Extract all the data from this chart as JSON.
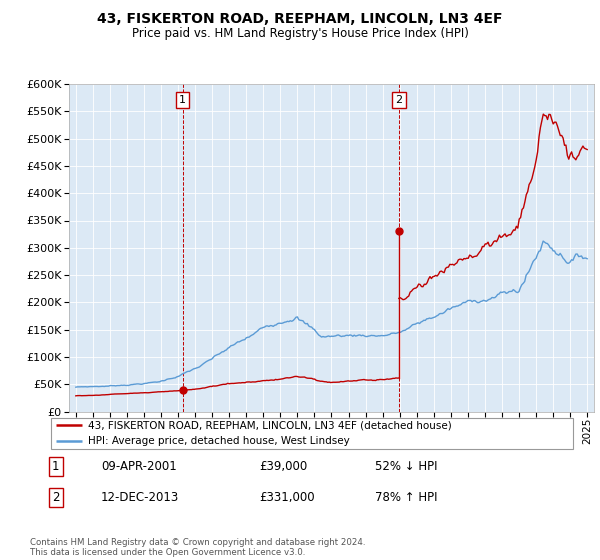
{
  "title": "43, FISKERTON ROAD, REEPHAM, LINCOLN, LN3 4EF",
  "subtitle": "Price paid vs. HM Land Registry's House Price Index (HPI)",
  "legend_line1": "43, FISKERTON ROAD, REEPHAM, LINCOLN, LN3 4EF (detached house)",
  "legend_line2": "HPI: Average price, detached house, West Lindsey",
  "annotation1_date": "09-APR-2001",
  "annotation1_price": "£39,000",
  "annotation1_hpi": "52% ↓ HPI",
  "annotation2_date": "12-DEC-2013",
  "annotation2_price": "£331,000",
  "annotation2_hpi": "78% ↑ HPI",
  "footer": "Contains HM Land Registry data © Crown copyright and database right 2024.\nThis data is licensed under the Open Government Licence v3.0.",
  "hpi_color": "#5b9bd5",
  "price_color": "#c00000",
  "vline_color": "#c00000",
  "ann_box_color": "#c00000",
  "chart_bg": "#dce9f5",
  "ylim": [
    0,
    600000
  ],
  "yticks": [
    0,
    50000,
    100000,
    150000,
    200000,
    250000,
    300000,
    350000,
    400000,
    450000,
    500000,
    550000,
    600000
  ],
  "sale1_x": 2001.27,
  "sale1_y": 39000,
  "sale2_x": 2013.95,
  "sale2_y": 331000,
  "xmin": 1995,
  "xmax": 2025
}
